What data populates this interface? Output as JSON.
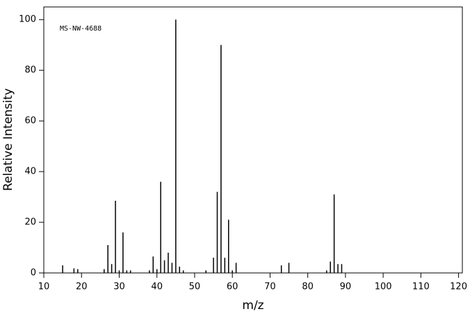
{
  "chart_data": {
    "type": "bar",
    "annotation": "MS-NW-4688",
    "x_label": "m/z",
    "y_label": "Relative Intensity",
    "x": [
      15,
      18,
      19,
      26,
      27,
      28,
      29,
      30,
      31,
      32,
      33,
      38,
      39,
      40,
      41,
      42,
      43,
      44,
      45,
      46,
      47,
      53,
      55,
      56,
      57,
      58,
      59,
      60,
      61,
      73,
      75,
      85,
      86,
      87,
      88,
      89
    ],
    "values": [
      3,
      1.8,
      1.5,
      1.5,
      11,
      3.5,
      28.5,
      1,
      16,
      1,
      1,
      1,
      6.5,
      1.5,
      36,
      5,
      8,
      4,
      100,
      2.5,
      1,
      1,
      6,
      32,
      90,
      6,
      21,
      1,
      4,
      3,
      4,
      1,
      4.5,
      31,
      3.5,
      3.5
    ],
    "color": "#000000",
    "xlim": [
      10,
      121
    ],
    "ylim": [
      0,
      105
    ],
    "xticks": [
      10,
      20,
      30,
      40,
      50,
      60,
      70,
      80,
      90,
      100,
      110,
      120
    ],
    "yticks": [
      0,
      20,
      40,
      60,
      80,
      100
    ]
  }
}
